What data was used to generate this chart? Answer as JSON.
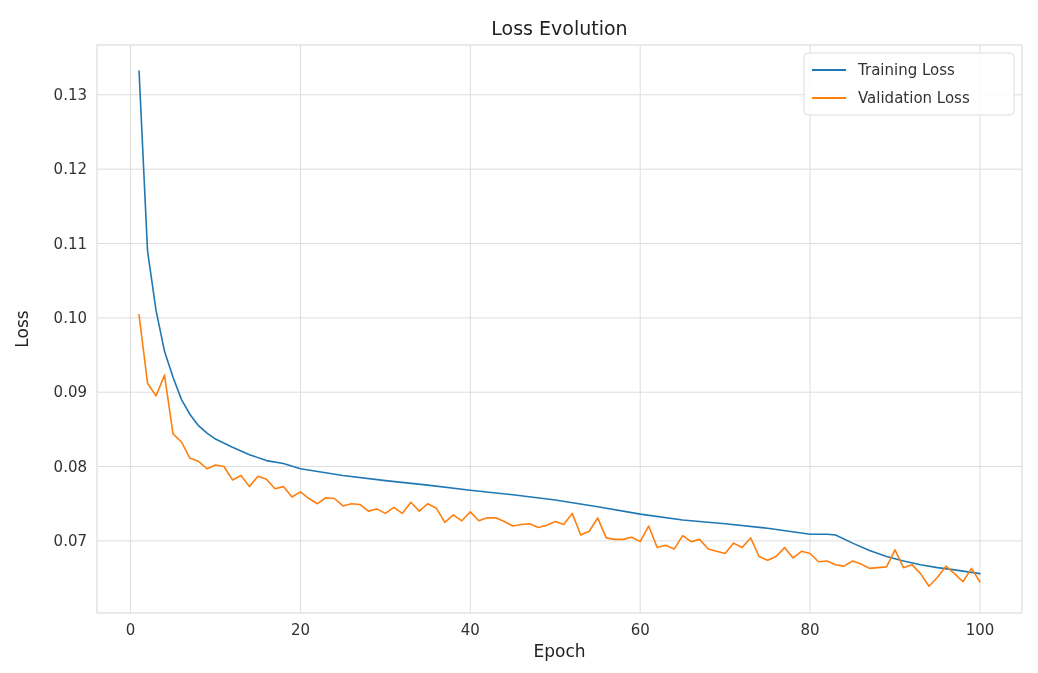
{
  "chart_data": {
    "type": "line",
    "title": "Loss Evolution",
    "xlabel": "Epoch",
    "ylabel": "Loss",
    "xlim": [
      -3.95,
      104.95
    ],
    "xticks": [
      0,
      20,
      40,
      60,
      80,
      100
    ],
    "ylim": [
      0.0603,
      0.1367
    ],
    "yticks": [
      0.07,
      0.08,
      0.09,
      {
        "value": 0.1,
        "label": "0.10"
      },
      0.11,
      0.12,
      0.13
    ],
    "grid": true,
    "legend": "top right",
    "line_style": "solid",
    "series": [
      {
        "name": "Training Loss",
        "color": "#1f77b4",
        "x": [
          1,
          2,
          3,
          4,
          5,
          6,
          7,
          8,
          9,
          10,
          12,
          14,
          16,
          18,
          20,
          25,
          30,
          35,
          40,
          45,
          50,
          55,
          60,
          65,
          70,
          75,
          80,
          82,
          83,
          85,
          87,
          89,
          91,
          93,
          95,
          97,
          100
        ],
        "values": [
          0.1332,
          0.109,
          0.101,
          0.0955,
          0.092,
          0.089,
          0.087,
          0.0855,
          0.0845,
          0.0837,
          0.0826,
          0.0816,
          0.0808,
          0.0804,
          0.0797,
          0.0788,
          0.0781,
          0.0775,
          0.0768,
          0.0762,
          0.0755,
          0.0746,
          0.0736,
          0.0728,
          0.0723,
          0.0717,
          0.0709,
          0.0709,
          0.0708,
          0.0697,
          0.0687,
          0.0679,
          0.0673,
          0.0668,
          0.0664,
          0.0661,
          0.0656
        ]
      },
      {
        "name": "Validation Loss",
        "color": "#ff7f0e",
        "x": [
          1,
          2,
          3,
          4,
          5,
          6,
          7,
          8,
          9,
          10,
          11,
          12,
          13,
          14,
          15,
          16,
          17,
          18,
          19,
          20,
          21,
          22,
          23,
          24,
          25,
          26,
          27,
          28,
          29,
          30,
          31,
          32,
          33,
          34,
          35,
          36,
          37,
          38,
          39,
          40,
          41,
          42,
          43,
          44,
          45,
          46,
          47,
          48,
          49,
          50,
          51,
          52,
          53,
          54,
          55,
          56,
          57,
          58,
          59,
          60,
          61,
          62,
          63,
          64,
          65,
          66,
          67,
          68,
          69,
          70,
          71,
          72,
          73,
          74,
          75,
          76,
          77,
          78,
          79,
          80,
          81,
          82,
          83,
          84,
          85,
          86,
          87,
          88,
          89,
          90,
          91,
          92,
          93,
          94,
          95,
          96,
          97,
          98,
          99,
          100
        ],
        "values": [
          0.1004,
          0.0912,
          0.0895,
          0.0923,
          0.0844,
          0.0833,
          0.0811,
          0.0807,
          0.0797,
          0.0802,
          0.08,
          0.0782,
          0.0788,
          0.0773,
          0.0787,
          0.0783,
          0.077,
          0.0773,
          0.0759,
          0.0766,
          0.0757,
          0.075,
          0.0758,
          0.0757,
          0.0747,
          0.075,
          0.0749,
          0.074,
          0.0743,
          0.0737,
          0.0745,
          0.0737,
          0.0752,
          0.074,
          0.075,
          0.0744,
          0.0725,
          0.0735,
          0.0727,
          0.0739,
          0.0727,
          0.0731,
          0.0731,
          0.0726,
          0.072,
          0.0722,
          0.0723,
          0.0718,
          0.0721,
          0.0726,
          0.0722,
          0.0737,
          0.0708,
          0.0713,
          0.0731,
          0.0704,
          0.0702,
          0.0702,
          0.0705,
          0.0699,
          0.072,
          0.0691,
          0.0694,
          0.0689,
          0.0707,
          0.0699,
          0.0702,
          0.0689,
          0.0686,
          0.0683,
          0.0697,
          0.0691,
          0.0704,
          0.0679,
          0.0674,
          0.0679,
          0.0691,
          0.0677,
          0.0686,
          0.0683,
          0.0672,
          0.0673,
          0.0668,
          0.0666,
          0.0673,
          0.0669,
          0.0663,
          0.0664,
          0.0665,
          0.0688,
          0.0664,
          0.0668,
          0.0656,
          0.0639,
          0.0651,
          0.0666,
          0.0656,
          0.0645,
          0.0663,
          0.0645
        ]
      }
    ]
  }
}
